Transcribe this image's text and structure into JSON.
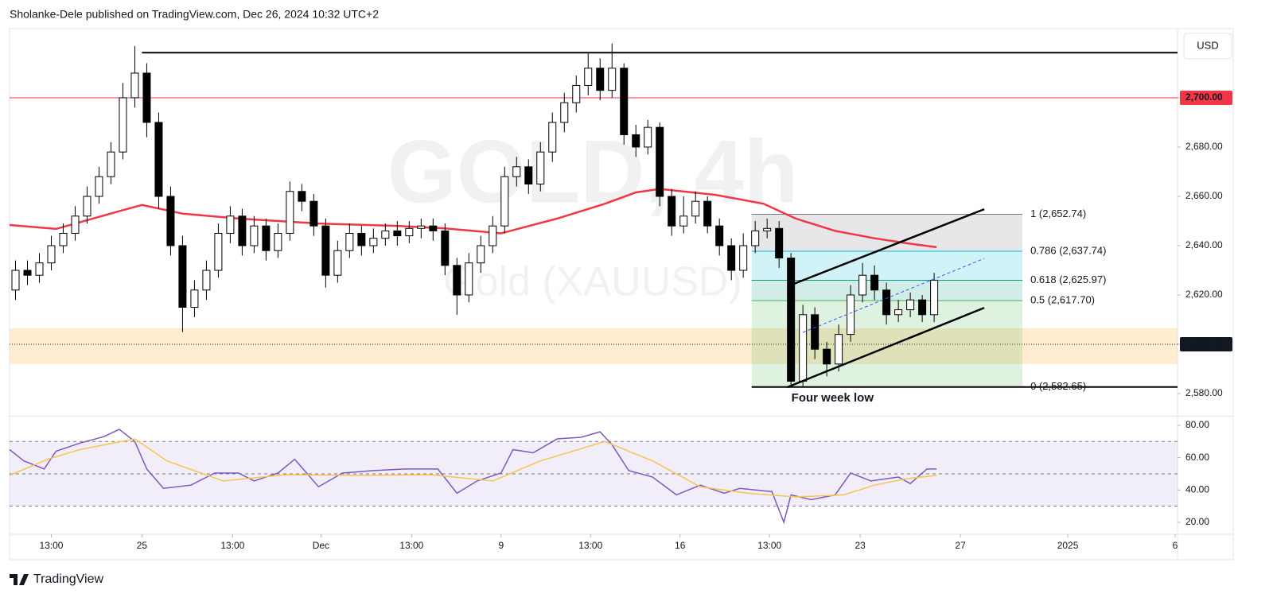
{
  "header": {
    "byline": "Sholanke-Dele published on TradingView.com, Dec 26, 2024 10:32 UTC+2",
    "currency": "USD"
  },
  "footer": {
    "brand": "TradingView"
  },
  "chart_data": [
    {
      "type": "candlestick",
      "title": "GOLD, 4h",
      "subtitle": "Gold (XAUUSD)",
      "xlim": [
        -0.5,
        97.4
      ],
      "xticks": [
        {
          "value": 3.0,
          "label": "13:00"
        },
        {
          "value": 10.6,
          "label": "25"
        },
        {
          "value": 18.2,
          "label": "13:00"
        },
        {
          "value": 25.6,
          "label": "Dec"
        },
        {
          "value": 33.2,
          "label": "13:00"
        },
        {
          "value": 40.7,
          "label": "9"
        },
        {
          "value": 48.2,
          "label": "13:00"
        },
        {
          "value": 55.7,
          "label": "16"
        },
        {
          "value": 63.2,
          "label": "13:00"
        },
        {
          "value": 70.8,
          "label": "23"
        },
        {
          "value": 79.2,
          "label": "27"
        },
        {
          "value": 88.2,
          "label": "2025"
        },
        {
          "value": 97.2,
          "label": "6"
        }
      ],
      "ylim": [
        2571.3,
        2727.4
      ],
      "yticks": [
        {
          "value": 2580,
          "label": "2,580.00"
        },
        {
          "value": 2600,
          "label": "2,600.00"
        },
        {
          "value": 2620,
          "label": "2,620.00"
        },
        {
          "value": 2640,
          "label": "2,640.00"
        },
        {
          "value": 2660,
          "label": "2,660.00"
        },
        {
          "value": 2680,
          "label": "2,680.00"
        },
        {
          "value": 2700,
          "label": "2,700.00"
        }
      ],
      "up_color": "#ffffff",
      "down_color": "#000000",
      "edge_color": "#000000",
      "open": [
        2622,
        2630,
        2628,
        2633,
        2640,
        2645,
        2652,
        2660,
        2668,
        2678,
        2700,
        2710,
        2690,
        2660,
        2640,
        2615,
        2622,
        2630,
        2645,
        2652,
        2640,
        2648,
        2638,
        2645,
        2662,
        2658,
        2648,
        2628,
        2638,
        2645,
        2640,
        2643,
        2646,
        2644,
        2647,
        2648,
        2646,
        2632,
        2620,
        2633,
        2640,
        2648,
        2668,
        2672,
        2665,
        2678,
        2690,
        2698,
        2705,
        2712,
        2703,
        2712,
        2685,
        2680,
        2688,
        2660,
        2648,
        2652,
        2658,
        2648,
        2640,
        2630,
        2640,
        2646,
        2647,
        2635,
        2585,
        2612,
        2598,
        2592,
        2604,
        2620,
        2628,
        2622,
        2612,
        2614,
        2618,
        2612
      ],
      "high": [
        2634,
        2634,
        2637,
        2644,
        2649,
        2656,
        2664,
        2672,
        2682,
        2706,
        2721,
        2714,
        2694,
        2664,
        2644,
        2626,
        2634,
        2649,
        2656,
        2655,
        2652,
        2651,
        2649,
        2666,
        2665,
        2661,
        2651,
        2642,
        2649,
        2648,
        2647,
        2649,
        2650,
        2650,
        2651,
        2651,
        2649,
        2635,
        2637,
        2644,
        2652,
        2672,
        2676,
        2675,
        2682,
        2694,
        2702,
        2709,
        2718,
        2716,
        2722,
        2714,
        2689,
        2691,
        2690,
        2663,
        2660,
        2662,
        2660,
        2651,
        2643,
        2645,
        2650,
        2651,
        2650,
        2637,
        2616,
        2615,
        2601,
        2608,
        2624,
        2633,
        2632,
        2625,
        2618,
        2621,
        2620,
        2629
      ],
      "low": [
        2618,
        2624,
        2625,
        2630,
        2637,
        2642,
        2649,
        2657,
        2665,
        2675,
        2696,
        2684,
        2655,
        2636,
        2605,
        2611,
        2618,
        2627,
        2641,
        2636,
        2637,
        2634,
        2635,
        2642,
        2654,
        2644,
        2623,
        2625,
        2635,
        2636,
        2637,
        2640,
        2640,
        2641,
        2643,
        2642,
        2628,
        2612,
        2617,
        2629,
        2637,
        2645,
        2664,
        2661,
        2662,
        2674,
        2686,
        2694,
        2701,
        2699,
        2700,
        2681,
        2676,
        2677,
        2656,
        2644,
        2645,
        2649,
        2645,
        2636,
        2626,
        2627,
        2637,
        2643,
        2631,
        2583,
        2583,
        2594,
        2587,
        2589,
        2601,
        2617,
        2618,
        2608,
        2609,
        2611,
        2609,
        2609
      ],
      "close": [
        2630,
        2628,
        2633,
        2640,
        2645,
        2652,
        2660,
        2668,
        2678,
        2700,
        2710,
        2690,
        2660,
        2640,
        2615,
        2622,
        2630,
        2645,
        2652,
        2640,
        2648,
        2638,
        2645,
        2662,
        2658,
        2648,
        2628,
        2638,
        2645,
        2640,
        2643,
        2646,
        2644,
        2647,
        2648,
        2646,
        2632,
        2620,
        2633,
        2640,
        2648,
        2668,
        2672,
        2665,
        2678,
        2690,
        2698,
        2705,
        2712,
        2703,
        2712,
        2685,
        2680,
        2688,
        2660,
        2648,
        2652,
        2658,
        2648,
        2640,
        2630,
        2640,
        2646,
        2647,
        2635,
        2585,
        2612,
        2598,
        2592,
        2604,
        2620,
        2628,
        2622,
        2612,
        2614,
        2618,
        2612,
        2626
      ],
      "overlays": [
        {
          "color": "#f23645",
          "x": [
            -0.5,
            3.4,
            8.7,
            10.6,
            14.0,
            18.7,
            25.4,
            32.0,
            36.0,
            40.7,
            45.4,
            49.4,
            52.0,
            54.0,
            58.7,
            62.7,
            65.4,
            68.7,
            72.0,
            74.7,
            77.2
          ],
          "values": [
            2648.4,
            2646.8,
            2654,
            2656.5,
            2653,
            2651,
            2649,
            2648,
            2647,
            2645,
            2651,
            2657,
            2661.6,
            2663,
            2660.6,
            2657,
            2651,
            2646,
            2643,
            2641,
            2639.4
          ]
        }
      ],
      "levels": [
        {
          "value": 2700,
          "color": "#f23645"
        }
      ],
      "resistance": {
        "value": 2718.3,
        "from": 10.6
      },
      "zone": {
        "low": 2592,
        "high": 2606.5,
        "mid": 2600,
        "color": "#ffe0b2"
      },
      "fib": {
        "x": [
          61.7,
          84.4
        ],
        "levels": [
          {
            "value": 2652.74,
            "label": "1 (2,652.74)",
            "color": "#787b86"
          },
          {
            "value": 2637.74,
            "label": "0.786 (2,637.74)",
            "color": "#00bcd4"
          },
          {
            "value": 2625.97,
            "label": "0.618 (2,625.97)",
            "color": "#089981"
          },
          {
            "value": 2617.7,
            "label": "0.5 (2,617.70)",
            "color": "#4caf50"
          },
          {
            "value": 2582.65,
            "label": "0 (2,582.65)",
            "color": "#787b86"
          }
        ],
        "band_colors": [
          "#787b86",
          "#00bcd4",
          "#089981",
          "#4caf50"
        ]
      },
      "channel": {
        "x": [
          64.7,
          81.2
        ],
        "upper": [
          2623.5,
          2654.8
        ],
        "lower": [
          2582.6,
          2614.8
        ],
        "mid_x": [
          66.0,
          81.2
        ],
        "mid": [
          2604.8,
          2634.8
        ]
      },
      "annotation": "Four week low"
    },
    {
      "type": "line",
      "xlim": [
        -0.5,
        97.4
      ],
      "ylim": [
        12.6,
        84.9
      ],
      "yticks": [
        {
          "value": 20,
          "label": "20.00"
        },
        {
          "value": 40,
          "label": "40.00"
        },
        {
          "value": 60,
          "label": "60.00"
        },
        {
          "value": 80,
          "label": "80.00"
        }
      ],
      "levels": [
        70,
        50,
        30
      ],
      "band": [
        30,
        70
      ],
      "band_color": "#7e57c2",
      "series": [
        {
          "color": "#7e57c2",
          "x": [
            -0.5,
            0.7,
            2.4,
            3.4,
            5.4,
            7.4,
            8.7,
            10.0,
            11.0,
            12.4,
            14.7,
            16.7,
            18.7,
            20.0,
            22.0,
            23.4,
            25.4,
            27.4,
            30.0,
            32.7,
            35.4,
            37.0,
            38.7,
            40.7,
            41.7,
            43.4,
            45.4,
            47.4,
            49.0,
            50.0,
            51.4,
            53.4,
            55.4,
            57.4,
            59.4,
            60.7,
            63.4,
            64.4,
            65.0,
            66.7,
            68.7,
            70.0,
            71.7,
            74.0,
            75.0,
            76.4,
            77.2
          ],
          "values": [
            65,
            58,
            53,
            64,
            69,
            73,
            77.5,
            70,
            53,
            41,
            43,
            50.5,
            50.5,
            45.6,
            50.5,
            59,
            42,
            50.5,
            52,
            53,
            53,
            38,
            45.6,
            50.5,
            65,
            63,
            71.6,
            72.6,
            76,
            68,
            52,
            48,
            37,
            43,
            38,
            41,
            39,
            20,
            37,
            34,
            37,
            50.5,
            45.6,
            48,
            44,
            53,
            53
          ]
        },
        {
          "color": "#f7c548",
          "x": [
            -0.5,
            2.7,
            5.4,
            10.0,
            12.7,
            17.4,
            22.7,
            28.7,
            34.7,
            40.0,
            44.0,
            49.4,
            53.4,
            57.4,
            61.4,
            65.4,
            69.4,
            72.0,
            74.7,
            77.2
          ],
          "values": [
            49,
            59,
            65,
            71.6,
            58,
            45.6,
            49.5,
            49,
            49.5,
            45.6,
            58,
            70,
            58,
            42,
            38,
            35.7,
            37,
            43,
            47,
            49
          ]
        }
      ]
    }
  ]
}
